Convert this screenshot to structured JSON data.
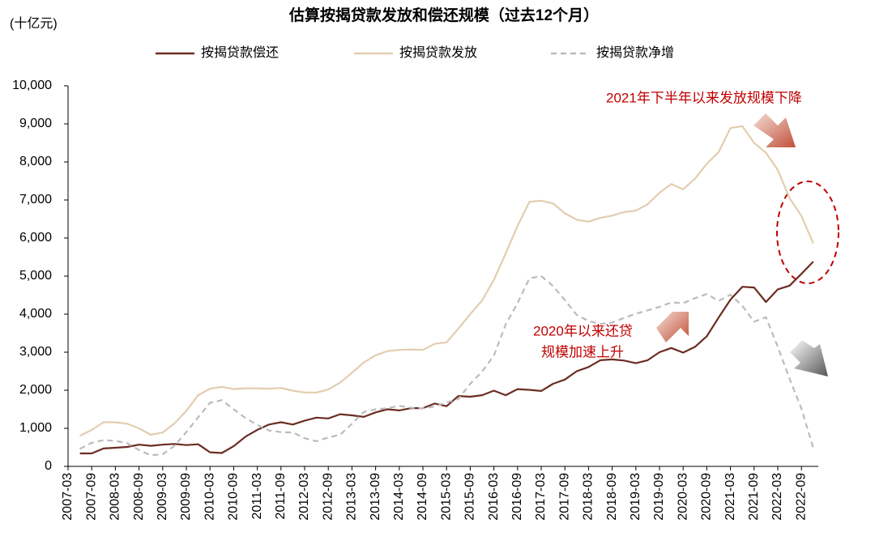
{
  "chart_data": {
    "type": "line",
    "title": "估算按揭贷款发放和偿还规模（过去12个月）",
    "y_unit_label": "(十亿元)",
    "annotations": [
      "2021年下半年以来发放规模下降",
      "2020年以来还贷",
      "规模加速上升"
    ],
    "categories": [
      "2007-03",
      null,
      "2007-09",
      null,
      "2008-03",
      null,
      "2008-09",
      null,
      "2009-03",
      null,
      "2009-09",
      null,
      "2010-03",
      null,
      "2010-09",
      null,
      "2011-03",
      null,
      "2011-09",
      null,
      "2012-03",
      null,
      "2012-09",
      null,
      "2013-03",
      null,
      "2013-09",
      null,
      "2014-03",
      null,
      "2014-09",
      null,
      "2015-03",
      null,
      "2015-09",
      null,
      "2016-03",
      null,
      "2016-09",
      null,
      "2017-03",
      null,
      "2017-09",
      null,
      "2018-03",
      null,
      "2018-09",
      null,
      "2019-03",
      null,
      "2019-09",
      null,
      "2020-03",
      null,
      "2020-09",
      null,
      "2021-03",
      null,
      "2021-09",
      null,
      "2022-03",
      null,
      "2022-09",
      null
    ],
    "series": [
      {
        "name": "按揭贷款偿还",
        "color": "#6b2d22",
        "dashed": false,
        "values": [
          null,
          340,
          340,
          470,
          490,
          510,
          570,
          540,
          570,
          590,
          560,
          580,
          370,
          350,
          530,
          780,
          960,
          1100,
          1160,
          1100,
          1200,
          1280,
          1260,
          1370,
          1340,
          1300,
          1420,
          1500,
          1470,
          1530,
          1530,
          1650,
          1580,
          1850,
          1830,
          1870,
          1990,
          1870,
          2030,
          2010,
          1980,
          2170,
          2280,
          2500,
          2610,
          2790,
          2810,
          2780,
          2710,
          2790,
          3000,
          3110,
          2990,
          3140,
          3420,
          3910,
          4380,
          4720,
          4700,
          4320,
          4650,
          4750,
          5060,
          5380
        ]
      },
      {
        "name": "按揭贷款发放",
        "color": "#e3cdb0",
        "dashed": false,
        "values": [
          null,
          800,
          960,
          1160,
          1160,
          1120,
          1000,
          830,
          890,
          1130,
          1460,
          1870,
          2040,
          2090,
          2030,
          2050,
          2050,
          2040,
          2060,
          1990,
          1940,
          1940,
          2020,
          2200,
          2460,
          2730,
          2920,
          3030,
          3060,
          3070,
          3060,
          3220,
          3260,
          3620,
          4000,
          4360,
          4900,
          5600,
          6320,
          6950,
          6980,
          6910,
          6650,
          6480,
          6430,
          6530,
          6590,
          6680,
          6720,
          6890,
          7190,
          7420,
          7280,
          7560,
          7950,
          8260,
          8890,
          8940,
          8500,
          8240,
          7790,
          7050,
          6580,
          5860
        ]
      },
      {
        "name": "按揭贷款净增",
        "color": "#bbbbbb",
        "dashed": true,
        "values": [
          null,
          460,
          620,
          690,
          670,
          610,
          430,
          290,
          320,
          540,
          900,
          1290,
          1670,
          1740,
          1500,
          1270,
          1090,
          940,
          900,
          890,
          740,
          660,
          760,
          830,
          1120,
          1430,
          1500,
          1530,
          1590,
          1540,
          1530,
          1570,
          1680,
          1770,
          2170,
          2490,
          2910,
          3730,
          4290,
          4940,
          5000,
          4740,
          4370,
          3980,
          3820,
          3740,
          3780,
          3900,
          4010,
          4100,
          4190,
          4310,
          4290,
          4420,
          4530,
          4350,
          4510,
          4220,
          3800,
          3920,
          3140,
          2300,
          1520,
          480
        ]
      }
    ],
    "ylim": [
      0,
      10000
    ],
    "yticks": [
      0,
      {
        "value": 1000,
        "label": "1,000"
      },
      {
        "value": 2000,
        "label": "2,000"
      },
      {
        "value": 3000,
        "label": "3,000"
      },
      {
        "value": 4000,
        "label": "4,000"
      },
      {
        "value": 5000,
        "label": "5,000"
      },
      {
        "value": 6000,
        "label": "6,000"
      },
      {
        "value": 7000,
        "label": "7,000"
      },
      {
        "value": 8000,
        "label": "8,000"
      },
      {
        "value": 9000,
        "label": "9,000"
      },
      {
        "value": 10000,
        "label": "10,000"
      }
    ],
    "grid": false
  }
}
